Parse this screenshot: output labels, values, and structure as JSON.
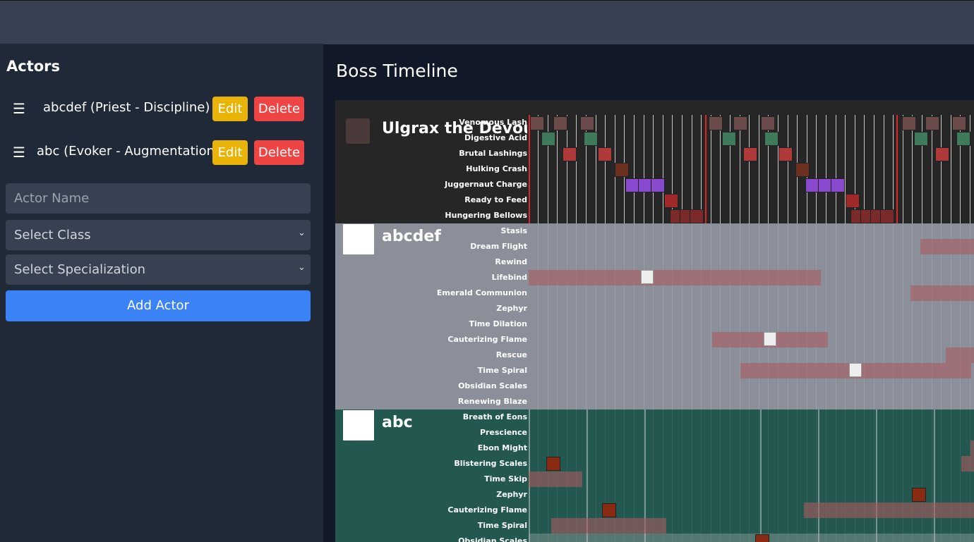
{
  "sidebar": {
    "title": "Actors",
    "actors": [
      {
        "label": "abcdef (Priest - Discipline)",
        "edit": "Edit",
        "delete": "Delete"
      },
      {
        "label": "abc (Evoker - Augmentation)",
        "edit": "Edit",
        "delete": "Delete"
      }
    ],
    "form": {
      "name_placeholder": "Actor Name",
      "class_select": "Select Class",
      "spec_select": "Select Specialization",
      "add_button": "Add Actor"
    }
  },
  "main": {
    "title": "Boss Timeline",
    "sections": [
      {
        "name": "Ulgrax the Devourer",
        "rows": [
          "Venomous Lash",
          "Digestive Acid",
          "Brutal Lashings",
          "Hulking Crash",
          "Juggernaut Charge",
          "Ready to Feed",
          "Hungering Bellows"
        ]
      },
      {
        "name": "abcdef",
        "rows": [
          "Stasis",
          "Dream Flight",
          "Rewind",
          "Lifebind",
          "Emerald Communion",
          "Zephyr",
          "Time Dilation",
          "Cauterizing Flame",
          "Rescue",
          "Time Spiral",
          "Obsidian Scales",
          "Renewing Blaze"
        ]
      },
      {
        "name": "abc",
        "rows": [
          "Breath of Eons",
          "Prescience",
          "Ebon Might",
          "Blistering Scales",
          "Time Skip",
          "Zephyr",
          "Cauterizing Flame",
          "Time Spiral",
          "Obsidian Scales"
        ]
      }
    ]
  }
}
